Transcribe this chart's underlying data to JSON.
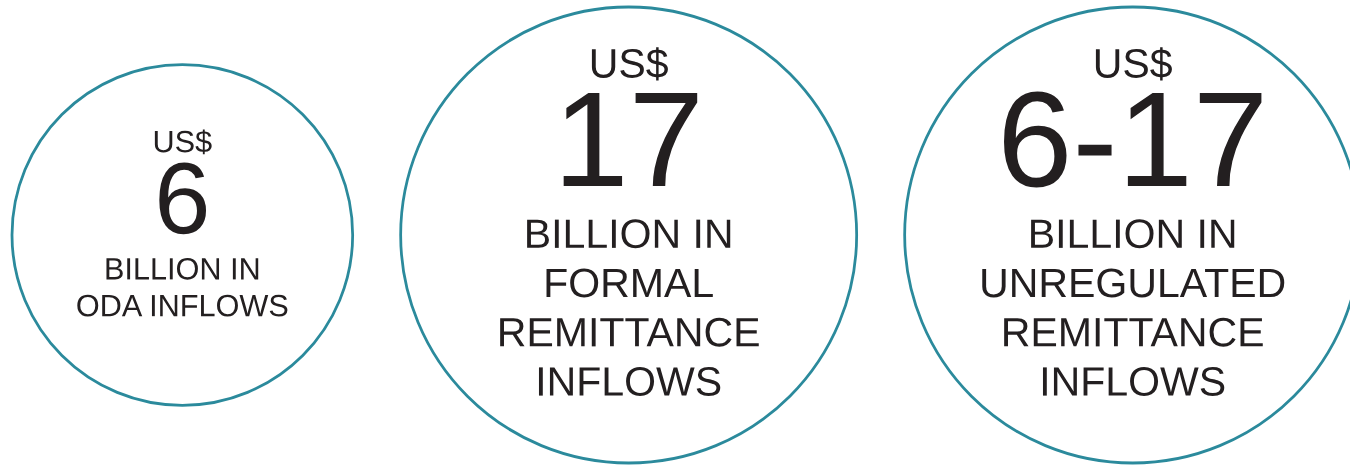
{
  "chart_data": {
    "type": "other",
    "categories": [
      "BILLION IN\nODA INFLOWS",
      "BILLION IN\nFORMAL\nREMITTANCE\nINFLOWS",
      "BILLION IN\nUNREGULATED\nREMITTANCE\nINFLOWS"
    ],
    "values": [
      6,
      17,
      null
    ],
    "value_labels": [
      "6",
      "17",
      "6-17"
    ],
    "annotations": [
      "US$",
      "US$",
      "US$"
    ],
    "color": "#2b8a9c"
  }
}
